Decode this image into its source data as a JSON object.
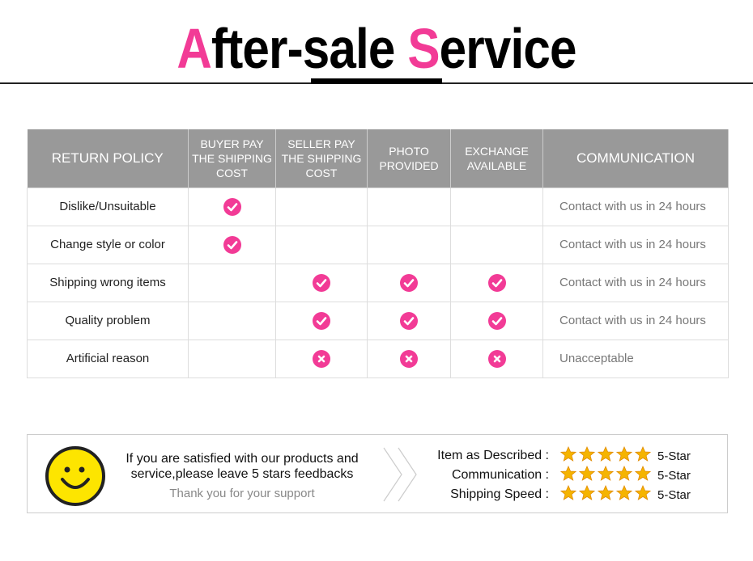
{
  "title": {
    "first_letter": "A",
    "part1": "fter-sale ",
    "second_letter": "S",
    "part2": "ervice"
  },
  "colors": {
    "accent": "#f23b96",
    "header_bg": "#999999",
    "star": "#f5b400"
  },
  "table": {
    "headers": [
      "RETURN POLICY",
      "BUYER PAY THE SHIPPING COST",
      "SELLER PAY THE SHIPPING COST",
      "PHOTO PROVIDED",
      "EXCHANGE AVAILABLE",
      "COMMUNICATION"
    ],
    "rows": [
      {
        "policy": "Dislike/Unsuitable",
        "marks": [
          "check",
          "",
          "",
          ""
        ],
        "communication": "Contact with us in 24 hours"
      },
      {
        "policy": "Change style or color",
        "marks": [
          "check",
          "",
          "",
          ""
        ],
        "communication": "Contact with us in 24 hours"
      },
      {
        "policy": "Shipping wrong items",
        "marks": [
          "",
          "check",
          "check",
          "check"
        ],
        "communication": "Contact with us in 24 hours"
      },
      {
        "policy": "Quality problem",
        "marks": [
          "",
          "check",
          "check",
          "check"
        ],
        "communication": "Contact with us in 24 hours"
      },
      {
        "policy": "Artificial reason",
        "marks": [
          "",
          "cross",
          "cross",
          "cross"
        ],
        "communication": "Unacceptable"
      }
    ]
  },
  "feedback": {
    "message": "If you are satisfied with our products and service,please leave 5 stars feedbacks",
    "thanks": "Thank you for your support",
    "ratings": [
      {
        "label": "Item as Described :",
        "stars": 5,
        "value": "5-Star"
      },
      {
        "label": "Communication :",
        "stars": 5,
        "value": "5-Star"
      },
      {
        "label": "Shipping Speed :",
        "stars": 5,
        "value": "5-Star"
      }
    ]
  }
}
